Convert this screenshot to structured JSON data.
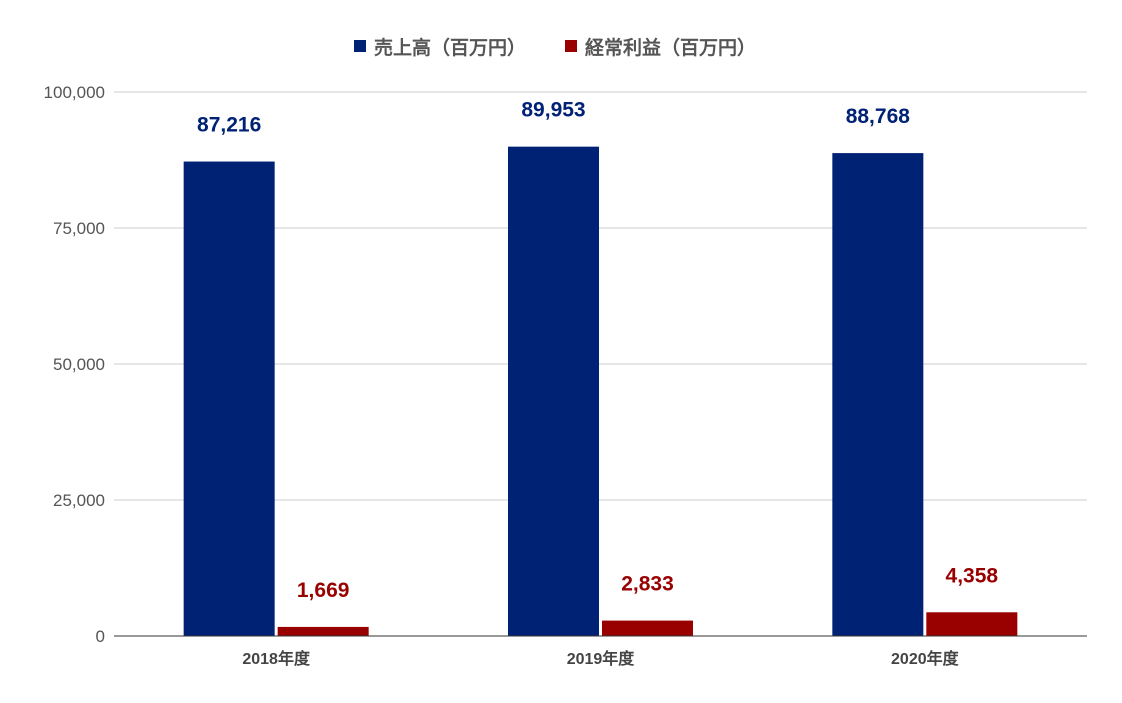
{
  "chart_data": {
    "type": "bar",
    "categories": [
      "2018年度",
      "2019年度",
      "2020年度"
    ],
    "series": [
      {
        "name": "売上高（百万円）",
        "color": "#002275",
        "values": [
          87216,
          89953,
          88768
        ],
        "labels": [
          "87,216",
          "89,953",
          "88,768"
        ]
      },
      {
        "name": "経常利益（百万円）",
        "color": "#990000",
        "values": [
          1669,
          2833,
          4358
        ],
        "labels": [
          "1,669",
          "2,833",
          "4,358"
        ]
      }
    ],
    "yticks": [
      0,
      25000,
      50000,
      75000,
      100000
    ],
    "ytick_labels": [
      "0",
      "25,000",
      "50,000",
      "75,000",
      "100,000"
    ],
    "ylim": [
      0,
      100000
    ],
    "grid": true,
    "legend_position": "top-center"
  }
}
